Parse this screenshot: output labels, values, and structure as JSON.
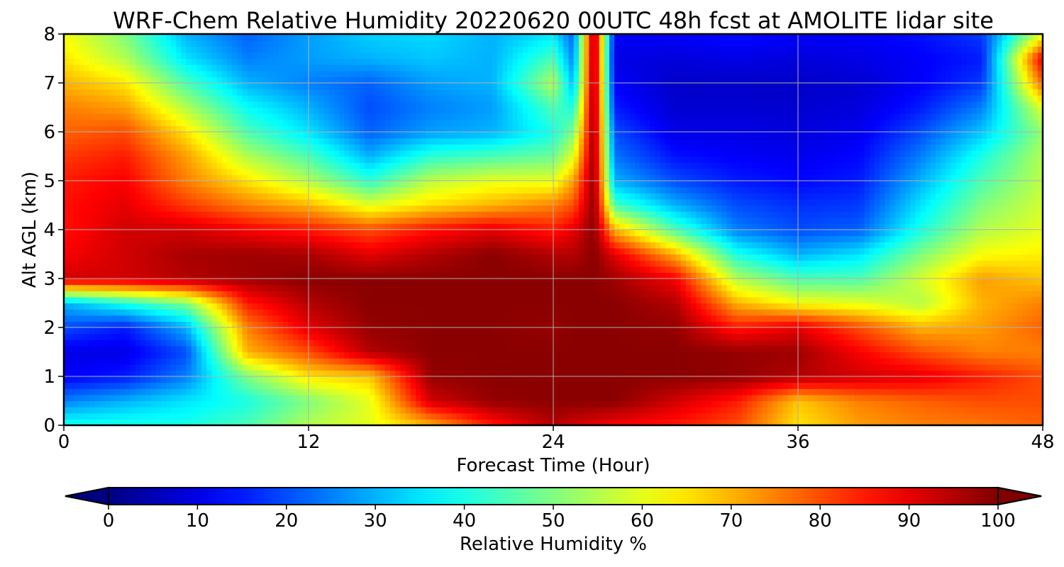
{
  "chart_data": {
    "type": "heatmap",
    "title": "WRF-Chem Relative Humidity 20220620 00UTC 48h fcst at AMOLITE lidar site",
    "xlabel": "Forecast Time (Hour)",
    "ylabel": "Alt AGL (km)",
    "xlim": [
      0,
      48
    ],
    "ylim": [
      0,
      8
    ],
    "x_ticks": [
      "0",
      "12",
      "24",
      "36",
      "48"
    ],
    "y_ticks": [
      "0",
      "1",
      "2",
      "3",
      "4",
      "5",
      "6",
      "7",
      "8"
    ],
    "grid": true,
    "colorbar": {
      "label": "Relative Humidity %",
      "ticks": [
        "0",
        "10",
        "20",
        "30",
        "40",
        "50",
        "60",
        "70",
        "80",
        "90",
        "100"
      ],
      "range": [
        0,
        100
      ],
      "extend": "both",
      "colormap": "jet",
      "orientation": "horizontal",
      "placement": "bottom"
    },
    "x": [
      0,
      3,
      6,
      9,
      12,
      15,
      18,
      21,
      24,
      25,
      26,
      27,
      30,
      33,
      36,
      39,
      42,
      45,
      48
    ],
    "y": [
      0,
      0.5,
      1,
      1.5,
      2,
      2.5,
      3,
      3.5,
      4,
      4.5,
      5,
      5.5,
      6,
      6.5,
      7,
      7.5,
      8
    ],
    "z": [
      [
        40,
        40,
        40,
        45,
        55,
        60,
        70,
        85,
        95,
        92,
        90,
        88,
        85,
        80,
        65,
        72,
        75,
        76,
        78
      ],
      [
        25,
        30,
        35,
        40,
        50,
        60,
        92,
        98,
        99,
        99,
        99,
        99,
        92,
        85,
        68,
        75,
        78,
        80,
        80
      ],
      [
        12,
        15,
        25,
        50,
        65,
        68,
        98,
        99,
        99,
        99,
        99,
        99,
        99,
        98,
        95,
        92,
        90,
        85,
        80
      ],
      [
        10,
        10,
        20,
        70,
        80,
        95,
        99,
        99,
        99,
        99,
        99,
        99,
        99,
        98,
        97,
        88,
        80,
        75,
        75
      ],
      [
        20,
        15,
        30,
        75,
        90,
        98,
        99,
        99,
        98,
        99,
        99,
        99,
        98,
        85,
        90,
        80,
        70,
        72,
        78
      ],
      [
        30,
        40,
        50,
        85,
        95,
        99,
        99,
        99,
        99,
        99,
        99,
        99,
        95,
        70,
        62,
        60,
        55,
        70,
        75
      ],
      [
        92,
        92,
        95,
        97,
        99,
        99,
        99,
        99,
        99,
        99,
        99,
        97,
        88,
        55,
        45,
        45,
        58,
        72,
        68
      ],
      [
        88,
        92,
        96,
        97,
        96,
        90,
        95,
        99,
        95,
        95,
        99,
        90,
        70,
        40,
        30,
        35,
        50,
        62,
        64
      ],
      [
        86,
        92,
        92,
        88,
        85,
        80,
        86,
        90,
        85,
        90,
        99,
        70,
        45,
        25,
        20,
        22,
        40,
        55,
        60
      ],
      [
        86,
        90,
        82,
        75,
        70,
        60,
        66,
        70,
        75,
        80,
        99,
        45,
        30,
        20,
        17,
        18,
        35,
        50,
        58
      ],
      [
        85,
        88,
        75,
        65,
        55,
        42,
        56,
        60,
        60,
        72,
        99,
        30,
        20,
        15,
        13,
        15,
        30,
        45,
        56
      ],
      [
        82,
        85,
        72,
        55,
        45,
        30,
        42,
        45,
        48,
        60,
        99,
        24,
        14,
        12,
        11,
        13,
        25,
        40,
        55
      ],
      [
        78,
        80,
        65,
        45,
        35,
        22,
        28,
        30,
        40,
        50,
        99,
        20,
        10,
        10,
        9,
        11,
        20,
        32,
        52
      ],
      [
        75,
        72,
        55,
        38,
        30,
        20,
        25,
        28,
        45,
        40,
        99,
        15,
        8,
        8,
        8,
        9,
        15,
        25,
        60
      ],
      [
        70,
        65,
        45,
        30,
        25,
        22,
        28,
        30,
        55,
        30,
        99,
        12,
        7,
        7,
        7,
        8,
        12,
        18,
        78
      ],
      [
        65,
        55,
        35,
        25,
        28,
        30,
        32,
        30,
        45,
        25,
        99,
        10,
        9,
        10,
        9,
        10,
        12,
        15,
        90
      ],
      [
        62,
        50,
        30,
        22,
        28,
        33,
        34,
        30,
        35,
        22,
        99,
        12,
        12,
        14,
        12,
        12,
        14,
        18,
        60
      ]
    ]
  }
}
